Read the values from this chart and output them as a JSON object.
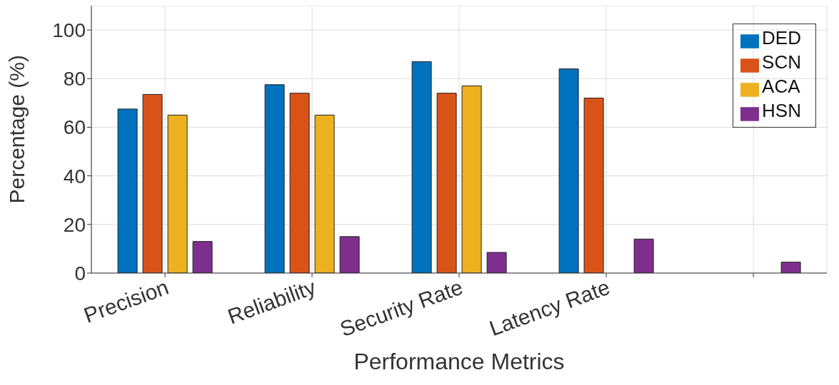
{
  "chart_data": {
    "type": "bar",
    "xlabel": "Performance Metrics",
    "ylabel": "Percentage (%)",
    "categories": [
      "Precision",
      "Reliability",
      "Security Rate",
      "Latency Rate",
      null
    ],
    "series": [
      {
        "name": "DED",
        "color": "#0072bd",
        "values": [
          67.5,
          77.5,
          87,
          84,
          null
        ]
      },
      {
        "name": "SCN",
        "color": "#d95319",
        "values": [
          73.5,
          74,
          74,
          72,
          null
        ]
      },
      {
        "name": "ACA",
        "color": "#edb120",
        "values": [
          65,
          65,
          77,
          null,
          null
        ]
      },
      {
        "name": "HSN",
        "color": "#7e2f8e",
        "values": [
          13,
          15,
          8.5,
          14,
          4.5
        ]
      }
    ],
    "ylim": [
      0,
      110
    ],
    "yticks": [
      0,
      20,
      40,
      60,
      80,
      100
    ],
    "grid": true,
    "legend": "top right"
  }
}
